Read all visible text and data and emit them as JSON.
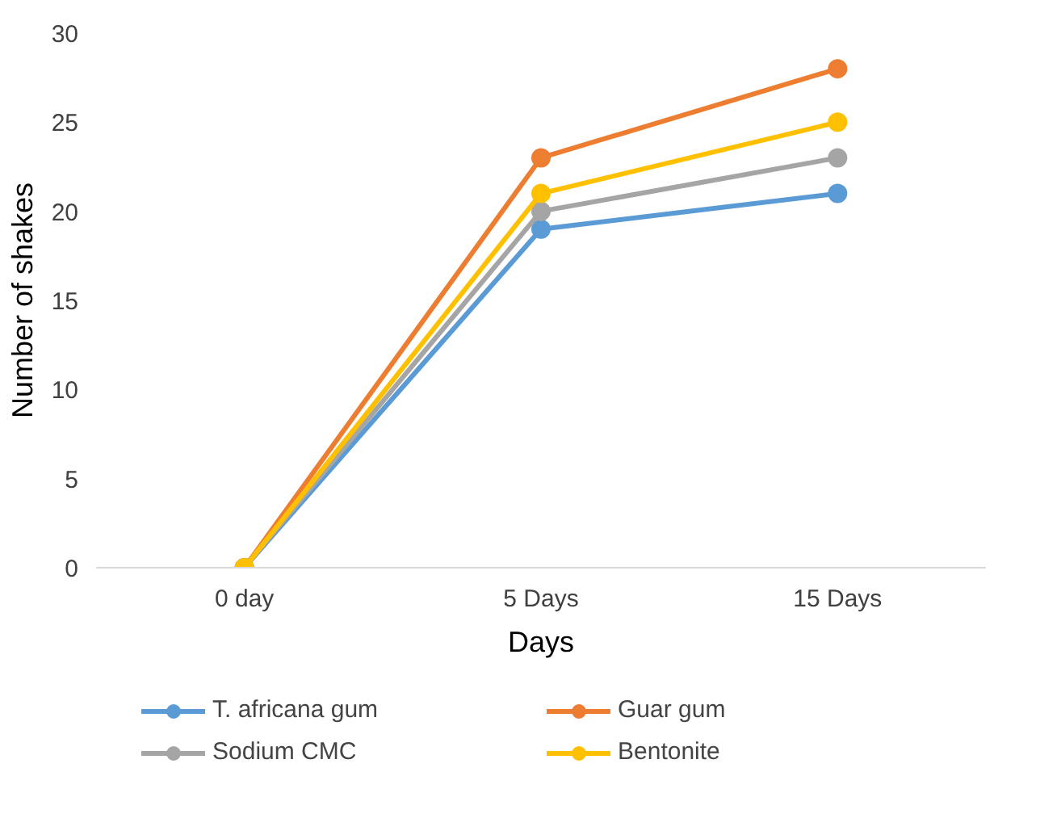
{
  "chart_data": {
    "type": "line",
    "ylabel": "Number of shakes",
    "xlabel": "Days",
    "categories": [
      "0 day",
      "5 Days",
      "15 Days"
    ],
    "series": [
      {
        "name": "T. africana gum",
        "color": "#5b9bd5",
        "values": [
          0,
          19,
          21
        ]
      },
      {
        "name": "Guar gum",
        "color": "#ed7d31",
        "values": [
          0,
          23,
          28
        ]
      },
      {
        "name": "Sodium CMC",
        "color": "#a5a5a5",
        "values": [
          0,
          20,
          23
        ]
      },
      {
        "name": "Bentonite",
        "color": "#ffc000",
        "values": [
          0,
          21,
          25
        ]
      }
    ],
    "ylim": [
      0,
      30
    ],
    "yticks": [
      0,
      5,
      10,
      15,
      20,
      25,
      30
    ],
    "grid": false,
    "legend": "bottom",
    "marker": "circle",
    "line_style": "solid"
  }
}
